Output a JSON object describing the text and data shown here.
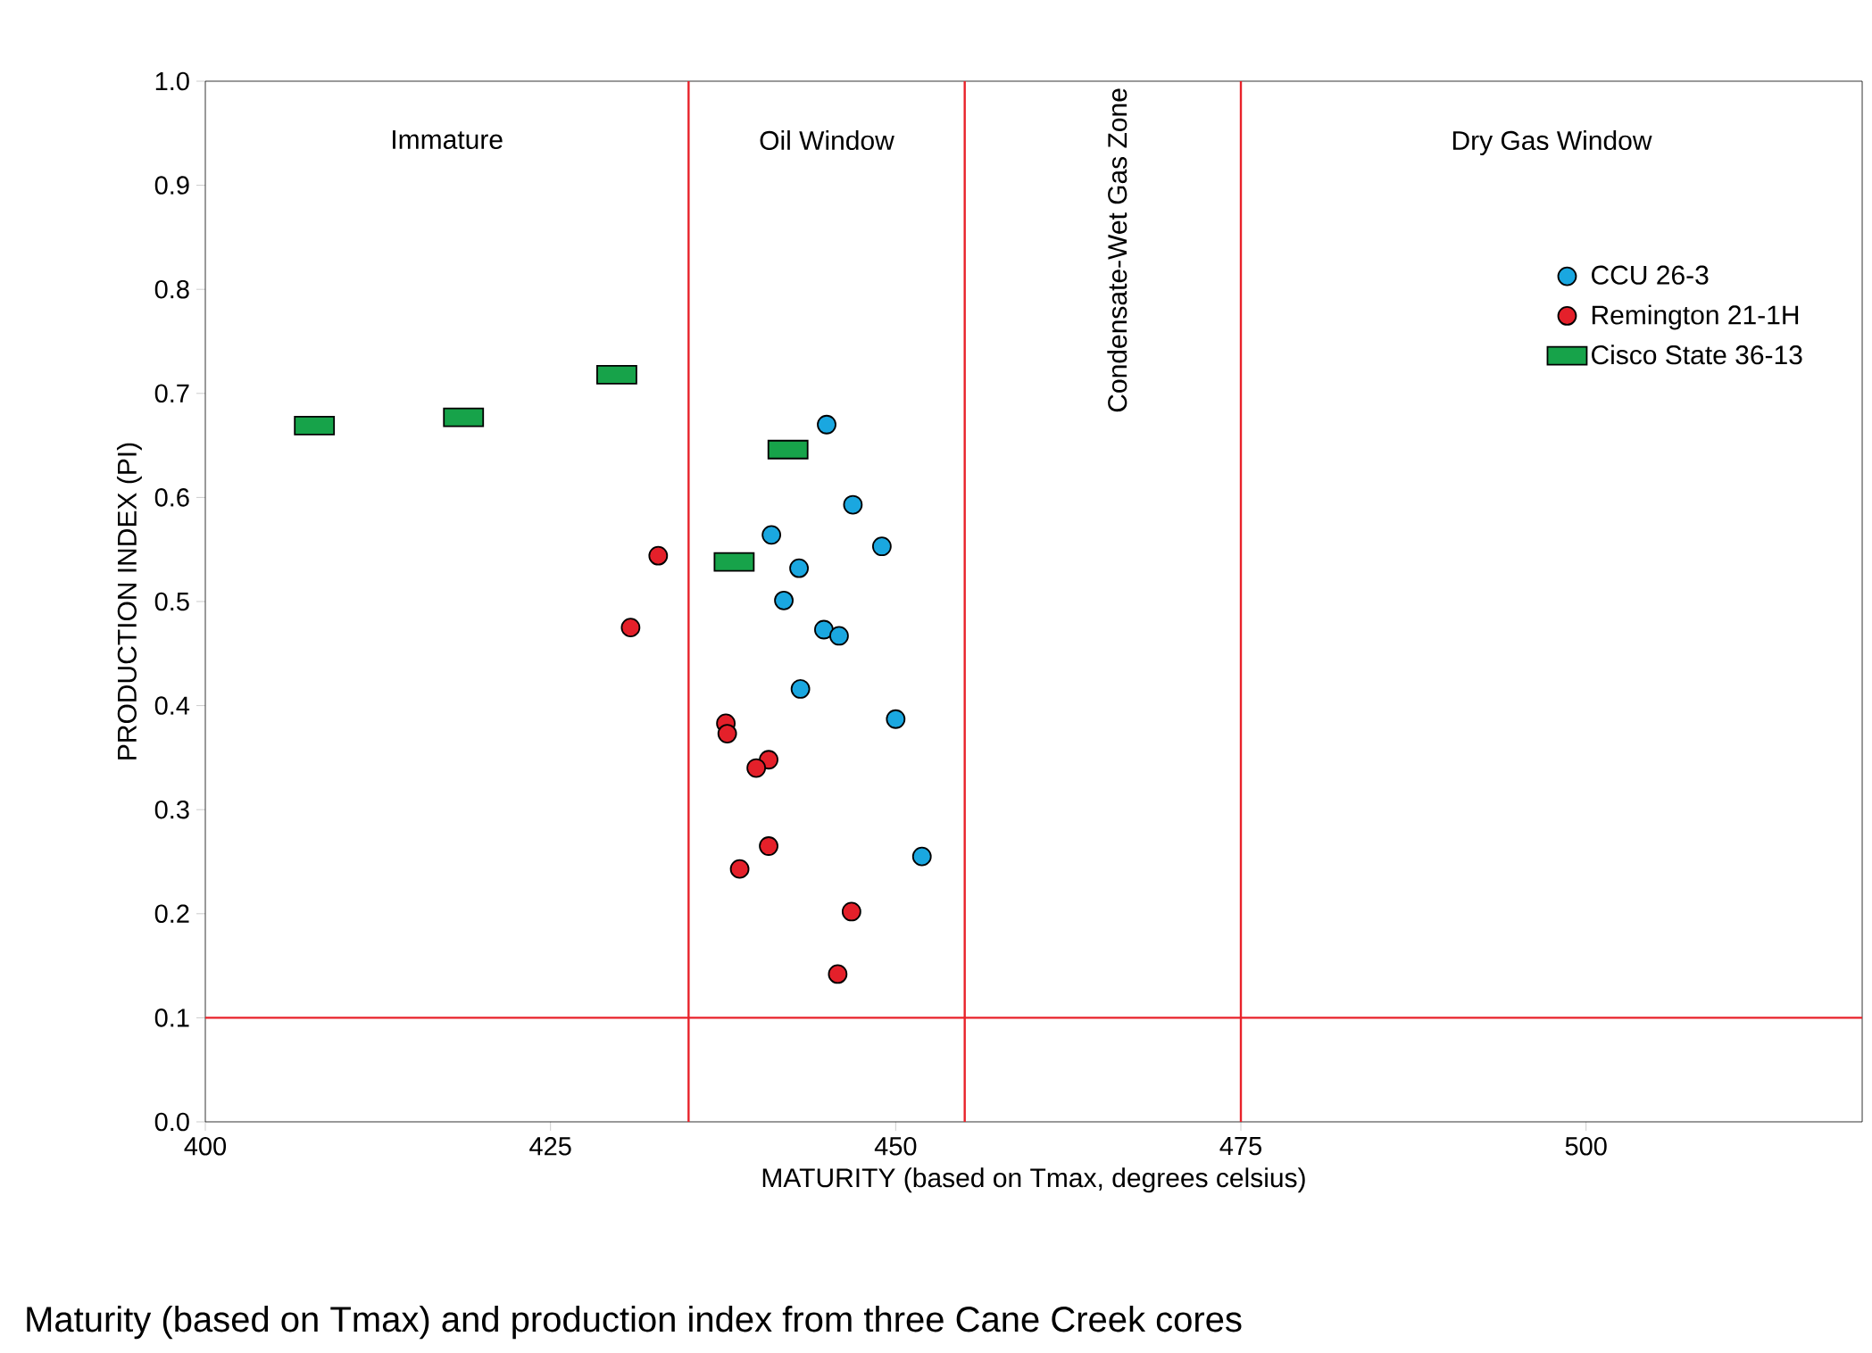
{
  "chart_data": {
    "type": "scatter",
    "xlabel": "MATURITY (based on Tmax, degrees celsius)",
    "ylabel": "PRODUCTION INDEX (PI)",
    "xlim": [
      400,
      520
    ],
    "ylim": [
      0,
      1
    ],
    "xticks": [
      400,
      425,
      450,
      475,
      500
    ],
    "yticks": [
      {
        "value": 0,
        "label": "0.0"
      },
      {
        "value": 0.1,
        "label": "0.1"
      },
      {
        "value": 0.2,
        "label": "0.2"
      },
      {
        "value": 0.3,
        "label": "0.3"
      },
      {
        "value": 0.4,
        "label": "0.4"
      },
      {
        "value": 0.5,
        "label": "0.5"
      },
      {
        "value": 0.6,
        "label": "0.6"
      },
      {
        "value": 0.7,
        "label": "0.7"
      },
      {
        "value": 0.8,
        "label": "0.8"
      },
      {
        "value": 0.9,
        "label": "0.9"
      },
      {
        "value": 1,
        "label": "1.0"
      }
    ],
    "grid": false,
    "legend": "top right",
    "series": [
      {
        "name": "CCU 26-3",
        "color": "#1aa7e0",
        "marker": "circle",
        "x": [
          445.0,
          446.9,
          449.0,
          441.0,
          443.0,
          441.9,
          444.8,
          445.9,
          443.1,
          450.0,
          451.9
        ],
        "values": [
          0.67,
          0.593,
          0.553,
          0.564,
          0.532,
          0.501,
          0.473,
          0.467,
          0.416,
          0.387,
          0.255
        ]
      },
      {
        "name": "Remington 21-1H",
        "color": "#e4202a",
        "marker": "circle",
        "x": [
          432.8,
          430.8,
          437.7,
          437.8,
          440.8,
          439.9,
          440.8,
          438.7,
          446.8,
          445.8
        ],
        "values": [
          0.544,
          0.475,
          0.383,
          0.373,
          0.348,
          0.34,
          0.265,
          0.243,
          0.202,
          0.142
        ]
      },
      {
        "name": "Cisco State 36-13",
        "color": "#17a34a",
        "marker": "square",
        "x": [
          407.9,
          418.7,
          429.8,
          442.2,
          438.3
        ],
        "values": [
          0.669,
          0.677,
          0.718,
          0.646,
          0.538
        ]
      }
    ],
    "ref_lines": [
      {
        "axis": "x",
        "value": 435,
        "color": "#e8222a"
      },
      {
        "axis": "x",
        "value": 455,
        "color": "#e8222a"
      },
      {
        "axis": "x",
        "value": 475,
        "color": "#e8222a"
      },
      {
        "axis": "y",
        "value": 0.1,
        "color": "#e8222a"
      }
    ],
    "annotations": [
      "Immature",
      "Oil Window",
      "Condensate-Wet Gas Zone",
      "Dry Gas Window",
      "Maturity (based on Tmax) and production index from three Cane Creek cores"
    ]
  }
}
